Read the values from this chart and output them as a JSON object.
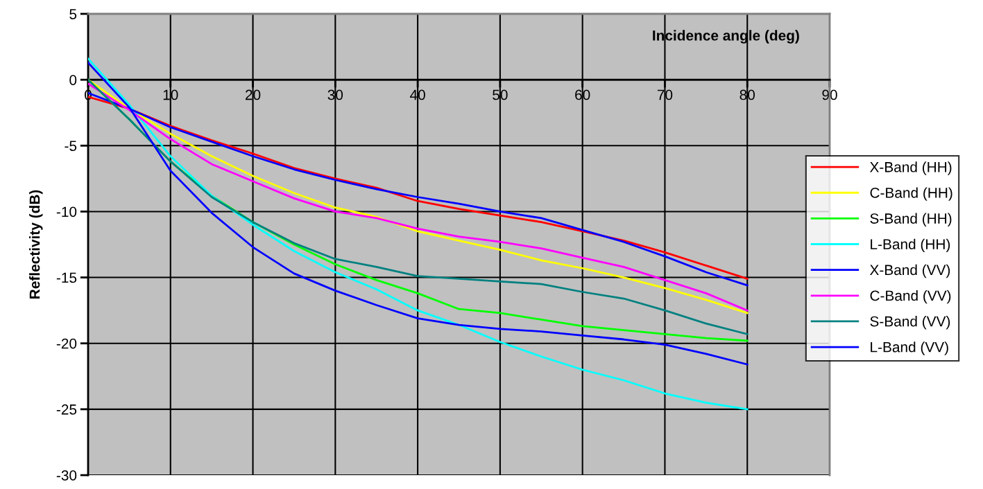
{
  "chart_data": {
    "type": "line",
    "xlabel": "Incidence angle (deg)",
    "ylabel": "Reflectivity (dB)",
    "x": [
      0,
      5,
      10,
      15,
      20,
      25,
      30,
      35,
      40,
      45,
      50,
      55,
      60,
      65,
      70,
      75,
      80
    ],
    "xlim": [
      0,
      90
    ],
    "ylim": [
      -30,
      5
    ],
    "xticks": [
      0,
      10,
      20,
      30,
      40,
      50,
      60,
      70,
      80,
      90
    ],
    "yticks": [
      -30,
      -25,
      -20,
      -15,
      -10,
      -5,
      0,
      5
    ],
    "grid": true,
    "legend": "right",
    "series": [
      {
        "name": "X-Band (HH)",
        "color": "#ff0000",
        "values": [
          -1.3,
          -2.2,
          -3.5,
          -4.6,
          -5.6,
          -6.7,
          -7.5,
          -8.2,
          -9.2,
          -9.8,
          -10.3,
          -10.8,
          -11.5,
          -12.2,
          -13.1,
          -14.1,
          -15.1
        ]
      },
      {
        "name": "C-Band (HH)",
        "color": "#ffff00",
        "values": [
          0.0,
          -2.2,
          -4.1,
          -5.8,
          -7.3,
          -8.6,
          -9.7,
          -10.4,
          -11.5,
          -12.2,
          -12.9,
          -13.7,
          -14.3,
          -15.0,
          -15.8,
          -16.7,
          -17.7
        ]
      },
      {
        "name": "S-Band (HH)",
        "color": "#00ff00",
        "values": [
          0.0,
          -3.0,
          -6.2,
          -8.8,
          -10.8,
          -12.5,
          -14.0,
          -15.2,
          -16.2,
          -17.4,
          -17.7,
          -18.2,
          -18.7,
          -19.0,
          -19.3,
          -19.6,
          -19.8
        ]
      },
      {
        "name": "L-Band (HH)",
        "color": "#00ffff",
        "values": [
          1.6,
          -1.9,
          -5.8,
          -8.8,
          -11.0,
          -13.0,
          -14.6,
          -15.9,
          -17.5,
          -18.6,
          -19.9,
          -21.0,
          -22.0,
          -22.8,
          -23.8,
          -24.5,
          -25.0
        ]
      },
      {
        "name": "X-Band (VV)",
        "color": "#0000ff",
        "values": [
          -1.0,
          -2.2,
          -3.6,
          -4.7,
          -5.8,
          -6.8,
          -7.6,
          -8.3,
          -8.9,
          -9.4,
          -10.0,
          -10.5,
          -11.4,
          -12.3,
          -13.4,
          -14.6,
          -15.6
        ]
      },
      {
        "name": "C-Band (VV)",
        "color": "#ff00ff",
        "values": [
          -0.3,
          -2.3,
          -4.5,
          -6.4,
          -7.7,
          -9.0,
          -10.0,
          -10.5,
          -11.3,
          -11.9,
          -12.3,
          -12.8,
          -13.5,
          -14.2,
          -15.2,
          -16.2,
          -17.5
        ]
      },
      {
        "name": "S-Band (VV)",
        "color": "#008080",
        "values": [
          0.0,
          -3.0,
          -6.2,
          -8.9,
          -10.8,
          -12.4,
          -13.6,
          -14.2,
          -14.9,
          -15.1,
          -15.3,
          -15.5,
          -16.1,
          -16.6,
          -17.5,
          -18.5,
          -19.3
        ]
      },
      {
        "name": "L-Band (VV)",
        "color": "#0000ff",
        "values": [
          1.3,
          -2.1,
          -6.9,
          -10.1,
          -12.7,
          -14.7,
          -16.0,
          -17.1,
          -18.1,
          -18.6,
          -18.9,
          -19.1,
          -19.4,
          -19.7,
          -20.1,
          -20.8,
          -21.6
        ]
      }
    ]
  }
}
